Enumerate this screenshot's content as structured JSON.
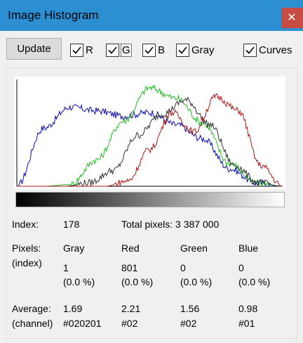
{
  "window": {
    "title": "Image Histogram",
    "close_glyph": "✕"
  },
  "toolbar": {
    "update_label": "Update",
    "checkboxes": [
      {
        "label": "R",
        "checked": true
      },
      {
        "label": "G",
        "checked": true,
        "focused": true
      },
      {
        "label": "B",
        "checked": true
      },
      {
        "label": "Gray",
        "checked": true
      },
      {
        "label": "Curves",
        "checked": true
      }
    ]
  },
  "chart_data": {
    "type": "line",
    "xlim": [
      0,
      255
    ],
    "series": [
      {
        "color": "#0b0bb0",
        "values": [
          0,
          66,
          90,
          86,
          80,
          84,
          70,
          54,
          20,
          4,
          0
        ]
      },
      {
        "color": "#22bb22",
        "values": [
          0,
          0,
          2,
          30,
          74,
          112,
          100,
          72,
          26,
          4,
          0
        ]
      },
      {
        "color": "#333333",
        "values": [
          0,
          0,
          0,
          4,
          18,
          58,
          82,
          98,
          70,
          24,
          4,
          0
        ]
      },
      {
        "color": "#b01515",
        "values": [
          0,
          0,
          0,
          0,
          0,
          6,
          42,
          84,
          62,
          102,
          86,
          24,
          0
        ]
      }
    ]
  },
  "stats": {
    "index_label": "Index:",
    "index_value": "178",
    "total_label": "Total pixels: 3 387 000",
    "pixels_label_1": "Pixels:",
    "pixels_label_2": "(index)",
    "col_headers": [
      "Gray",
      "Red",
      "Green",
      "Blue"
    ],
    "pixel_counts": [
      "1",
      "801",
      "0",
      "0"
    ],
    "pixel_percents": [
      "(0.0 %)",
      "(0.0 %)",
      "(0.0 %)",
      "(0.0 %)"
    ],
    "avg_label_1": "Average:",
    "avg_label_2": "(channel)",
    "averages": [
      "1.69",
      "2.21",
      "1.56",
      "0.98"
    ],
    "hex_values": [
      "#020201",
      "#02",
      "#02",
      "#01"
    ]
  }
}
